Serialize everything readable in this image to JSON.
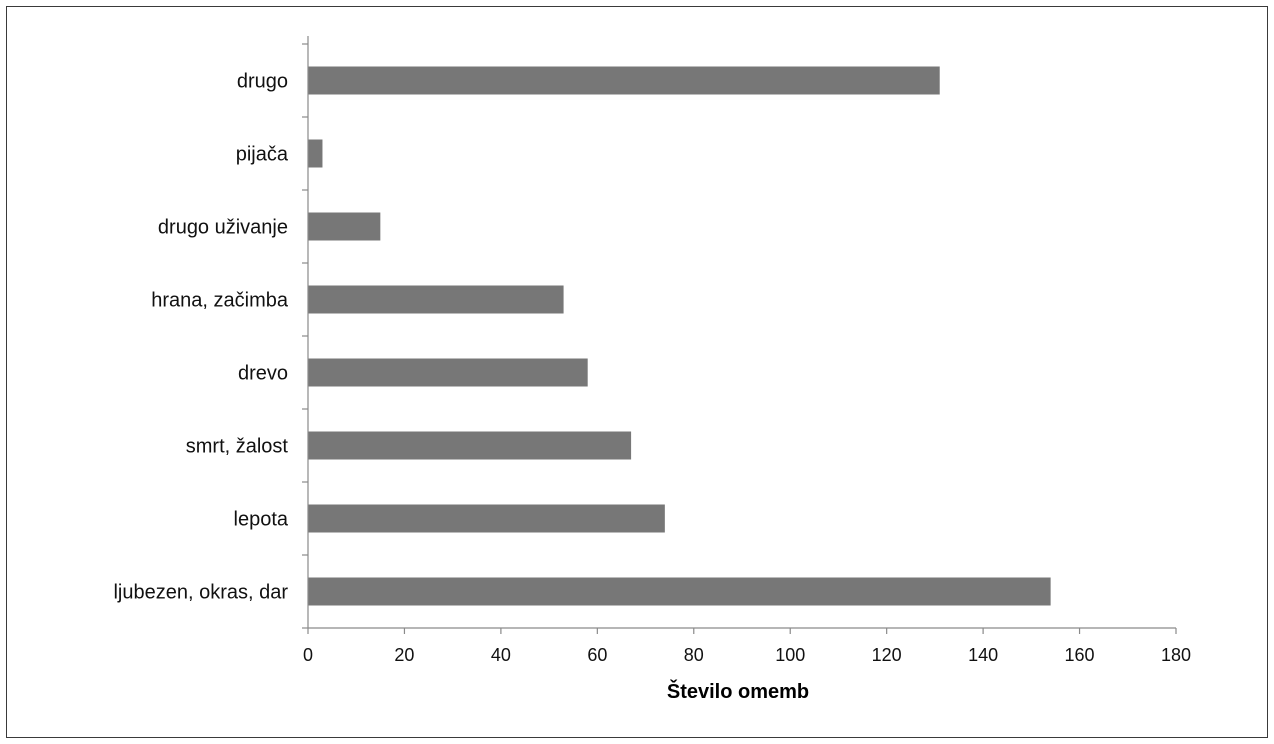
{
  "chart_data": {
    "type": "bar",
    "orientation": "horizontal",
    "categories": [
      "drugo",
      "pijača",
      "drugo uživanje",
      "hrana, začimba",
      "drevo",
      "smrt, žalost",
      "lepota",
      "ljubezen, okras, dar"
    ],
    "values": [
      131,
      3,
      15,
      53,
      58,
      67,
      74,
      154
    ],
    "title": "",
    "xlabel": "Število omemb",
    "ylabel": "",
    "xlim": [
      0,
      180
    ],
    "xticks": [
      "0",
      "20",
      "40",
      "60",
      "80",
      "100",
      "120",
      "140",
      "160",
      "180"
    ],
    "grid": false,
    "legend": "none",
    "bar_color": "#777777",
    "axis_color": "#8a8a8a"
  }
}
